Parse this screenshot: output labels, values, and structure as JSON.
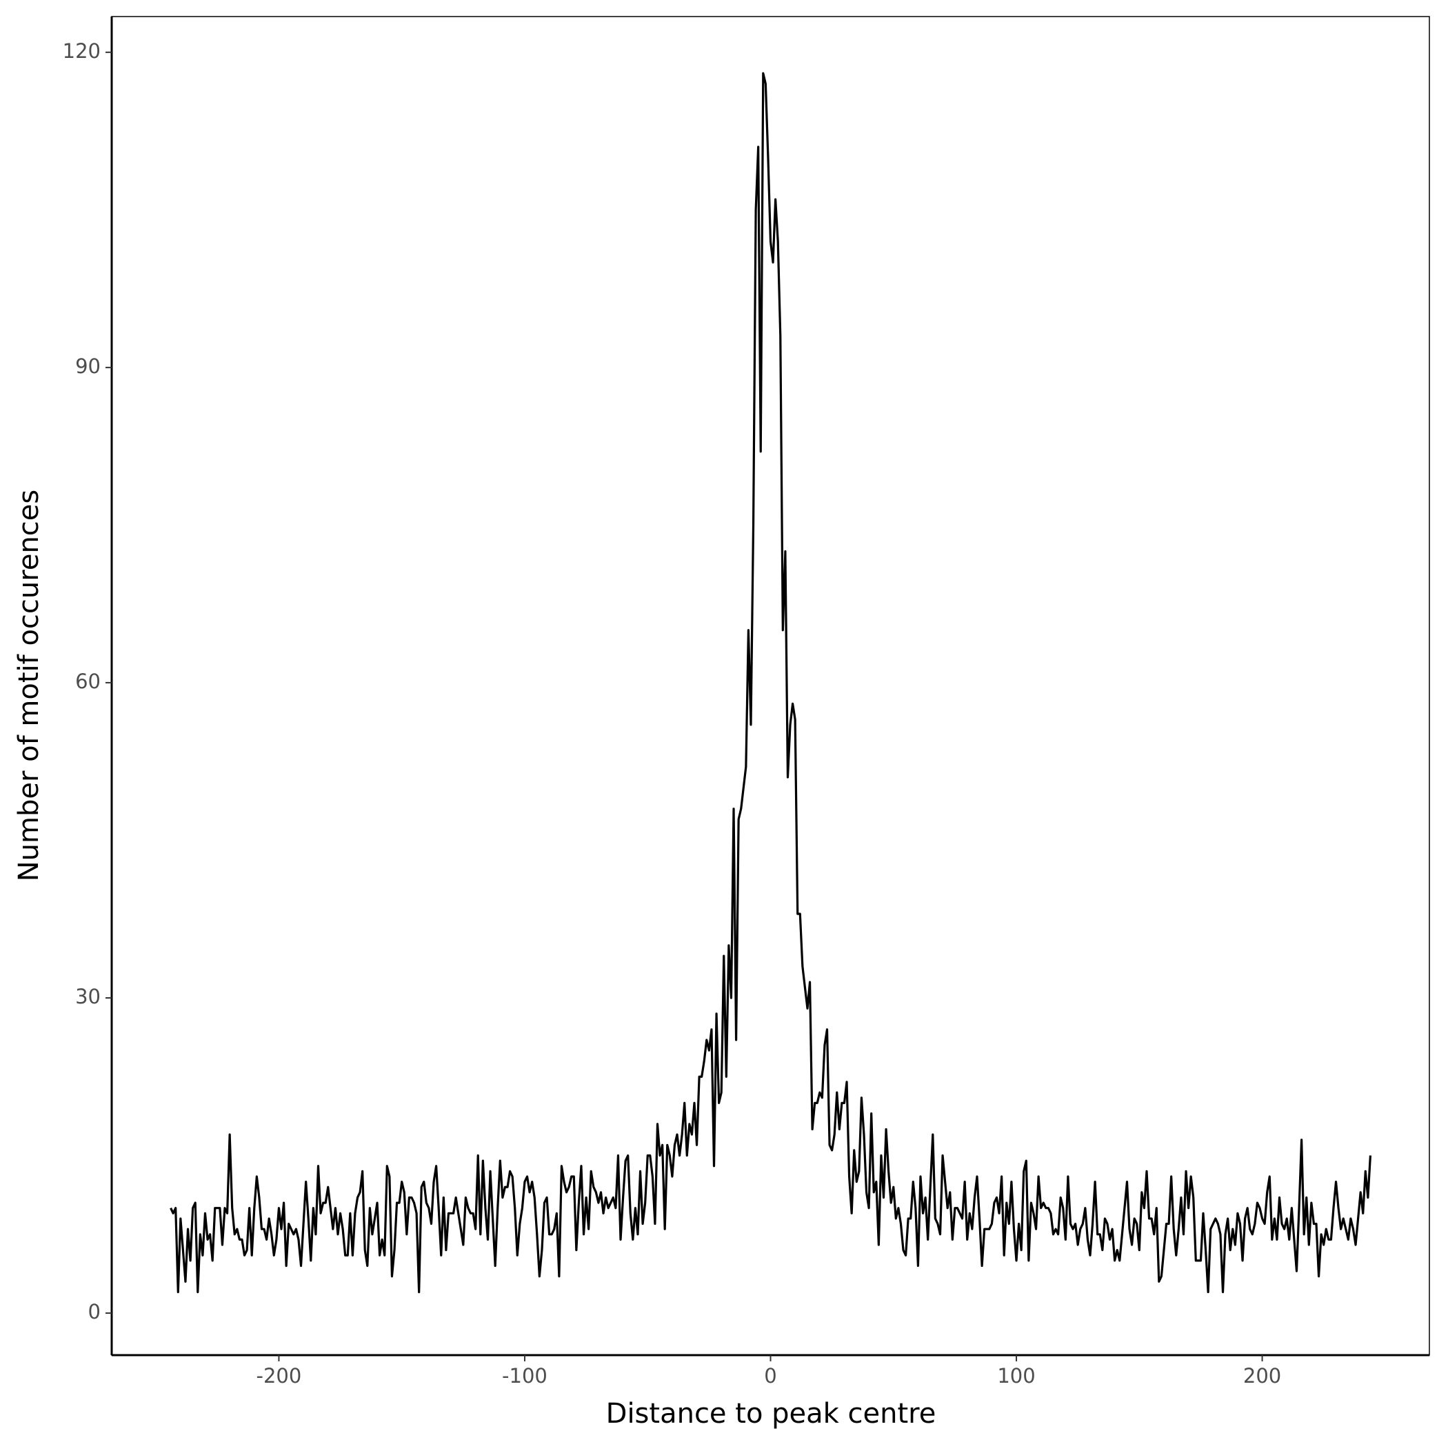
{
  "chart_data": {
    "type": "line",
    "xlabel": "Distance to peak centre",
    "ylabel": "Number of motif occurences",
    "xlim": [
      -268,
      268
    ],
    "ylim": [
      -4,
      123.4
    ],
    "xticks": [
      -200,
      -100,
      0,
      100,
      200
    ],
    "yticks": [
      0,
      30,
      60,
      90,
      120
    ],
    "grid": false,
    "x": [
      -244,
      -243,
      -242,
      -241,
      -240,
      -239,
      -238,
      -237,
      -236,
      -235,
      -234,
      -233,
      -232,
      -231,
      -230,
      -229,
      -228,
      -227,
      -226,
      -225,
      -224,
      -223,
      -222,
      -221,
      -220,
      -219,
      -218,
      -217,
      -216,
      -215,
      -214,
      -213,
      -212,
      -211,
      -210,
      -209,
      -208,
      -207,
      -206,
      -205,
      -204,
      -203,
      -202,
      -201,
      -200,
      -199,
      -198,
      -197,
      -196,
      -195,
      -194,
      -193,
      -192,
      -191,
      -190,
      -189,
      -188,
      -187,
      -186,
      -185,
      -184,
      -183,
      -182,
      -181,
      -180,
      -179,
      -178,
      -177,
      -176,
      -175,
      -174,
      -173,
      -172,
      -171,
      -170,
      -169,
      -168,
      -167,
      -166,
      -165,
      -164,
      -163,
      -162,
      -161,
      -160,
      -159,
      -158,
      -157,
      -156,
      -155,
      -154,
      -153,
      -152,
      -151,
      -150,
      -149,
      -148,
      -147,
      -146,
      -145,
      -144,
      -143,
      -142,
      -141,
      -140,
      -139,
      -138,
      -137,
      -136,
      -135,
      -134,
      -133,
      -132,
      -131,
      -130,
      -129,
      -128,
      -127,
      -126,
      -125,
      -124,
      -123,
      -122,
      -121,
      -120,
      -119,
      -118,
      -117,
      -116,
      -115,
      -114,
      -113,
      -112,
      -111,
      -110,
      -109,
      -108,
      -107,
      -106,
      -105,
      -104,
      -103,
      -102,
      -101,
      -100,
      -99,
      -98,
      -97,
      -96,
      -95,
      -94,
      -93,
      -92,
      -91,
      -90,
      -89,
      -88,
      -87,
      -86,
      -85,
      -84,
      -83,
      -82,
      -81,
      -80,
      -79,
      -78,
      -77,
      -76,
      -75,
      -74,
      -73,
      -72,
      -71,
      -70,
      -69,
      -68,
      -67,
      -66,
      -65,
      -64,
      -63,
      -62,
      -61,
      -60,
      -59,
      -58,
      -57,
      -56,
      -55,
      -54,
      -53,
      -52,
      -51,
      -50,
      -49,
      -48,
      -47,
      -46,
      -45,
      -44,
      -43,
      -42,
      -41,
      -40,
      -39,
      -38,
      -37,
      -36,
      -35,
      -34,
      -33,
      -32,
      -31,
      -30,
      -29,
      -28,
      -27,
      -26,
      -25,
      -24,
      -23,
      -22,
      -21,
      -20,
      -19,
      -18,
      -17,
      -16,
      -15,
      -14,
      -13,
      -12,
      -11,
      -10,
      -9,
      -8,
      -7,
      -6,
      -5,
      -4,
      -3,
      -2,
      -1,
      0,
      1,
      2,
      3,
      4,
      5,
      6,
      7,
      8,
      9,
      10,
      11,
      12,
      13,
      14,
      15,
      16,
      17,
      18,
      19,
      20,
      21,
      22,
      23,
      24,
      25,
      26,
      27,
      28,
      29,
      30,
      31,
      32,
      33,
      34,
      35,
      36,
      37,
      38,
      39,
      40,
      41,
      42,
      43,
      44,
      45,
      46,
      47,
      48,
      49,
      50,
      51,
      52,
      53,
      54,
      55,
      56,
      57,
      58,
      59,
      60,
      61,
      62,
      63,
      64,
      65,
      66,
      67,
      68,
      69,
      70,
      71,
      72,
      73,
      74,
      75,
      76,
      77,
      78,
      79,
      80,
      81,
      82,
      83,
      84,
      85,
      86,
      87,
      88,
      89,
      90,
      91,
      92,
      93,
      94,
      95,
      96,
      97,
      98,
      99,
      100,
      101,
      102,
      103,
      104,
      105,
      106,
      107,
      108,
      109,
      110,
      111,
      112,
      113,
      114,
      115,
      116,
      117,
      118,
      119,
      120,
      121,
      122,
      123,
      124,
      125,
      126,
      127,
      128,
      129,
      130,
      131,
      132,
      133,
      134,
      135,
      136,
      137,
      138,
      139,
      140,
      141,
      142,
      143,
      144,
      145,
      146,
      147,
      148,
      149,
      150,
      151,
      152,
      153,
      154,
      155,
      156,
      157,
      158,
      159,
      160,
      161,
      162,
      163,
      164,
      165,
      166,
      167,
      168,
      169,
      170,
      171,
      172,
      173,
      174,
      175,
      176,
      177,
      178,
      179,
      180,
      181,
      182,
      183,
      184,
      185,
      186,
      187,
      188,
      189,
      190,
      191,
      192,
      193,
      194,
      195,
      196,
      197,
      198,
      199,
      200,
      201,
      202,
      203,
      204,
      205,
      206,
      207,
      208,
      209,
      210,
      211,
      212,
      213,
      214,
      215,
      216,
      217,
      218,
      219,
      220,
      221,
      222,
      223,
      224,
      225,
      226,
      227,
      228,
      229,
      230,
      231,
      232,
      233,
      234,
      235,
      236,
      237,
      238,
      239,
      240,
      241,
      242,
      243,
      244
    ],
    "series": [
      {
        "color": "#000000",
        "values": [
          10,
          9.5,
          10,
          2,
          9,
          6,
          3,
          8,
          5,
          10,
          10.5,
          2,
          7.5,
          5.5,
          9.5,
          7,
          7.5,
          5,
          10,
          10,
          10,
          6.5,
          10,
          9.5,
          17,
          10,
          7.5,
          8,
          7,
          7,
          5.5,
          6,
          10,
          5.5,
          10,
          13,
          11,
          8,
          8,
          7,
          9,
          7.5,
          5.5,
          7,
          10,
          8,
          10.5,
          4.5,
          8.5,
          8,
          7.5,
          8,
          7,
          4.5,
          8.5,
          12.5,
          9,
          5,
          10,
          7.5,
          14,
          9.5,
          10.5,
          10.5,
          12,
          10,
          8,
          10,
          7.5,
          9.5,
          8,
          5.5,
          5.5,
          9.5,
          5.5,
          9.5,
          11,
          11.5,
          13.5,
          6,
          4.5,
          10,
          7.5,
          9,
          10.5,
          5.5,
          7,
          5.5,
          14,
          13,
          3.5,
          6,
          10.5,
          10.5,
          12.5,
          11.5,
          7.5,
          11,
          11,
          10.5,
          9.5,
          2,
          12,
          12.5,
          10.5,
          10,
          8.5,
          12.5,
          14,
          10,
          5.5,
          11,
          6,
          9.5,
          9.5,
          9.5,
          11,
          9.5,
          8,
          6.5,
          11,
          10,
          9.5,
          9.5,
          8,
          15,
          7.5,
          14.5,
          10,
          7,
          13.5,
          9,
          4.5,
          10,
          14.5,
          11,
          12,
          12,
          13.5,
          13,
          10,
          5.5,
          8.5,
          10,
          12.5,
          13,
          11.5,
          12.5,
          11,
          7.5,
          3.5,
          6,
          10.5,
          11,
          7.5,
          7.5,
          8,
          9.5,
          3.5,
          14,
          12.5,
          11.5,
          12,
          13,
          13,
          6,
          10.5,
          14,
          7.5,
          11,
          8,
          13.5,
          12,
          11.5,
          10.5,
          11.5,
          9.5,
          11,
          10,
          10.5,
          11,
          10,
          15,
          7,
          11,
          14.5,
          15,
          9.5,
          7,
          10,
          7.5,
          13.5,
          8.5,
          10.5,
          15,
          15,
          13,
          8.5,
          18,
          15,
          16,
          8,
          16,
          15,
          13,
          16,
          17,
          15,
          17,
          20,
          15,
          18,
          17,
          20,
          16,
          22.5,
          22.5,
          24,
          26,
          25,
          27,
          14,
          28.5,
          20,
          21,
          34,
          22.5,
          35,
          30,
          48,
          26,
          47,
          48,
          50,
          52,
          65,
          56,
          75,
          105,
          111,
          82,
          118,
          117,
          110,
          102,
          100,
          106,
          102,
          93,
          65,
          72.5,
          51,
          56,
          58,
          56.5,
          38,
          38,
          33,
          31,
          29,
          31.5,
          17.5,
          20,
          20,
          21,
          20.5,
          25.5,
          27,
          16,
          15.5,
          17,
          21,
          17.5,
          20,
          20,
          22,
          13,
          9.5,
          15.5,
          12.5,
          13.5,
          20.5,
          17,
          11.5,
          10,
          19,
          11.5,
          12.5,
          6.5,
          15,
          11,
          17.5,
          13.5,
          10.5,
          12,
          9,
          10,
          8.5,
          6,
          5.5,
          9,
          9,
          12.5,
          10,
          4.5,
          13,
          9.5,
          11,
          7,
          12,
          17,
          9,
          8.5,
          7.5,
          15,
          12.5,
          10,
          11.5,
          7,
          10,
          10,
          9.5,
          9,
          12.5,
          7,
          9.5,
          8,
          11,
          13,
          9,
          4.5,
          8,
          8,
          8,
          8.5,
          10.5,
          11,
          9.5,
          13,
          5.5,
          10.5,
          8.5,
          12.5,
          8,
          5,
          8.5,
          6,
          13.5,
          14.5,
          5,
          10.5,
          9.5,
          8,
          13,
          10,
          10.5,
          10,
          10,
          9.5,
          7.5,
          8,
          7.5,
          11,
          10,
          7,
          13,
          8.5,
          8,
          8.5,
          6.5,
          8,
          8.5,
          10,
          7,
          5.5,
          8.5,
          12.5,
          7.5,
          7.5,
          6,
          9,
          8.5,
          7,
          8,
          5,
          6,
          5,
          7.5,
          10,
          12.5,
          8,
          6.5,
          9,
          8.5,
          6,
          11.5,
          10,
          13.5,
          9,
          9,
          7.5,
          10,
          3,
          3.5,
          6,
          8.5,
          8.5,
          13,
          8,
          5.5,
          8,
          11,
          7.5,
          13.5,
          10,
          13,
          11,
          5,
          5,
          5,
          9.5,
          6,
          2,
          8,
          8.5,
          9,
          8.5,
          7.5,
          2,
          7.5,
          9,
          6,
          8,
          6.5,
          9.5,
          8.5,
          5,
          9,
          10,
          8,
          7.5,
          8.5,
          10.5,
          10,
          9,
          8.5,
          11.5,
          13,
          7,
          9,
          7,
          11,
          8.5,
          8,
          9,
          7,
          10,
          7,
          4,
          10,
          16.5,
          7.5,
          11,
          6.5,
          10.5,
          8.5,
          8.5,
          3.5,
          7.5,
          6.5,
          8,
          7,
          7,
          10,
          12.5,
          10,
          8,
          9,
          8,
          7,
          9,
          8,
          6.5,
          9,
          11.5,
          9.5,
          13.5,
          11,
          15
        ]
      }
    ]
  }
}
